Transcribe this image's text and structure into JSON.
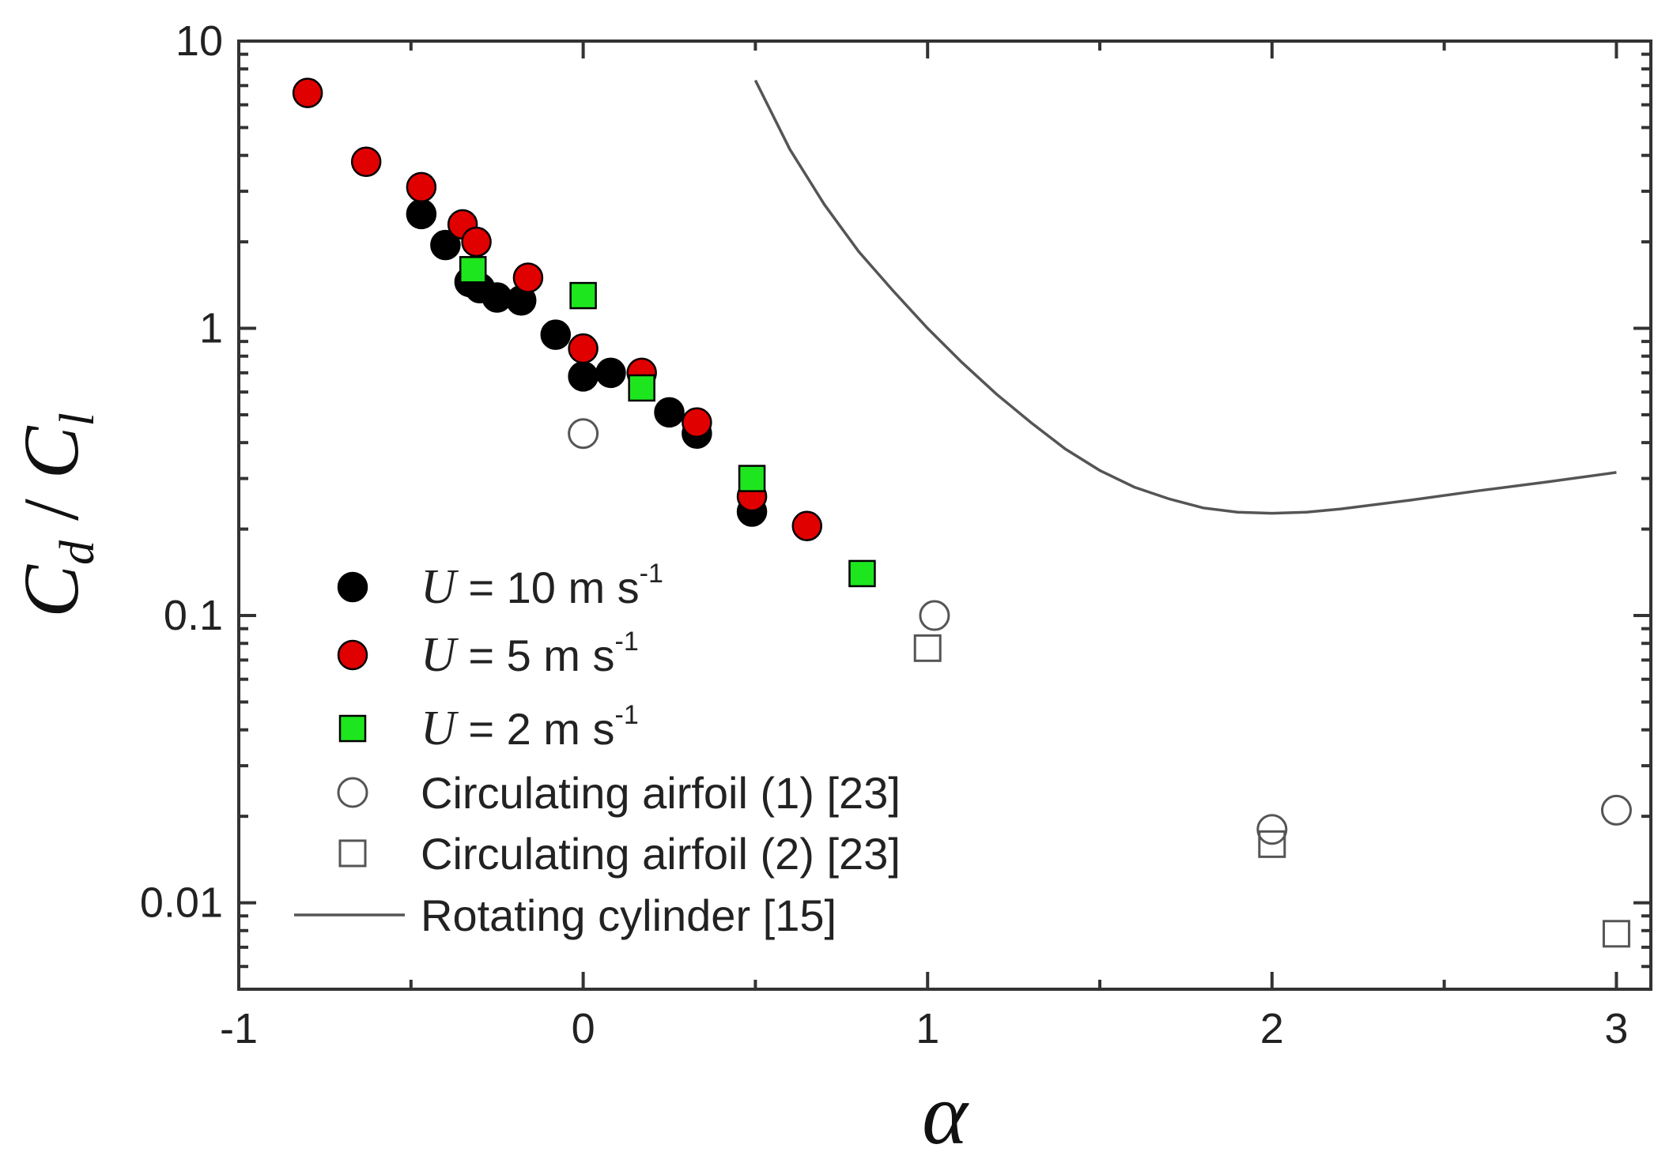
{
  "chart_data": {
    "type": "scatter",
    "title": "",
    "xlabel": "α",
    "ylabel": {
      "numerator": "C",
      "numerator_sub": "d",
      "separator": " / ",
      "denominator": "C",
      "denominator_sub": "l"
    },
    "xlim": [
      -1,
      3.1
    ],
    "ylim": [
      0.005,
      10
    ],
    "yscale": "log",
    "x_ticks": [
      -1,
      0,
      1,
      2,
      3
    ],
    "x_tick_labels": [
      "-1",
      "0",
      "1",
      "2",
      "3"
    ],
    "y_ticks": [
      0.01,
      0.1,
      1,
      10
    ],
    "y_tick_labels": [
      "0.01",
      "0.1",
      "1",
      "10"
    ],
    "grid": false,
    "legend_position": "bottom-left",
    "series": [
      {
        "name": "U10",
        "label_symbol": "U",
        "label_rest": " = 10 m s",
        "label_sup": "-1",
        "marker": "circle",
        "fill": "#000000",
        "stroke": "#000000",
        "x": [
          -0.47,
          -0.4,
          -0.33,
          -0.3,
          -0.25,
          -0.18,
          -0.08,
          0.0,
          0.08,
          0.25,
          0.33,
          0.49
        ],
        "y": [
          2.5,
          1.95,
          1.45,
          1.38,
          1.28,
          1.25,
          0.95,
          0.68,
          0.7,
          0.51,
          0.43,
          0.23
        ]
      },
      {
        "name": "U5",
        "label_symbol": "U",
        "label_rest": " = 5 m s",
        "label_sup": "-1",
        "marker": "circle",
        "fill": "#e10000",
        "stroke": "#000000",
        "x": [
          -0.8,
          -0.63,
          -0.47,
          -0.35,
          -0.31,
          -0.16,
          0.0,
          0.17,
          0.33,
          0.49,
          0.65
        ],
        "y": [
          6.6,
          3.8,
          3.1,
          2.3,
          2.0,
          1.5,
          0.85,
          0.7,
          0.47,
          0.26,
          0.205
        ]
      },
      {
        "name": "U2",
        "label_symbol": "U",
        "label_rest": " = 2 m s",
        "label_sup": "-1",
        "marker": "square",
        "fill": "#1ee61e",
        "stroke": "#000000",
        "x": [
          -0.32,
          0.0,
          0.17,
          0.49,
          0.81
        ],
        "y": [
          1.6,
          1.3,
          0.62,
          0.3,
          0.14
        ]
      },
      {
        "name": "airfoil1",
        "label": "Circulating airfoil (1) [23]",
        "marker": "circle",
        "fill": "none",
        "stroke": "#555555",
        "x": [
          0.0,
          1.02,
          2.0,
          3.0
        ],
        "y": [
          0.43,
          0.1,
          0.018,
          0.021
        ]
      },
      {
        "name": "airfoil2",
        "label": "Circulating airfoil (2) [23]",
        "marker": "square",
        "fill": "none",
        "stroke": "#555555",
        "x": [
          1.0,
          2.0,
          3.0
        ],
        "y": [
          0.077,
          0.016,
          0.0078
        ]
      },
      {
        "name": "cylinder",
        "label": "Rotating cylinder [15]",
        "marker": "line",
        "stroke": "#555555",
        "x": [
          0.5,
          0.6,
          0.7,
          0.8,
          0.9,
          1.0,
          1.1,
          1.2,
          1.3,
          1.4,
          1.5,
          1.6,
          1.7,
          1.8,
          1.9,
          2.0,
          2.1,
          2.2,
          2.4,
          2.6,
          2.8,
          3.0
        ],
        "y": [
          7.3,
          4.2,
          2.7,
          1.85,
          1.35,
          1.0,
          0.76,
          0.59,
          0.47,
          0.38,
          0.32,
          0.28,
          0.255,
          0.237,
          0.229,
          0.227,
          0.229,
          0.235,
          0.252,
          0.272,
          0.292,
          0.315
        ]
      }
    ]
  }
}
